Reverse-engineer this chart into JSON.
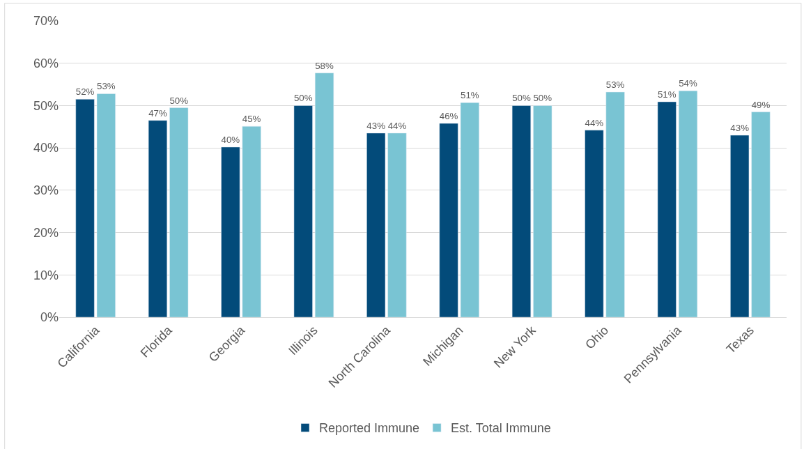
{
  "chart_data": {
    "type": "bar",
    "categories": [
      "California",
      "Florida",
      "Georgia",
      "Illinois",
      "North Carolina",
      "Michigan",
      "New York",
      "Ohio",
      "Pennsylvania",
      "Texas"
    ],
    "series": [
      {
        "name": "Reported Immune",
        "color": "#034b7a",
        "values": [
          51.5,
          46.5,
          40.2,
          50.0,
          43.5,
          45.8,
          50.0,
          44.2,
          50.9,
          43.0
        ],
        "value_labels": [
          "52%",
          "47%",
          "40%",
          "50%",
          "43%",
          "46%",
          "50%",
          "44%",
          "51%",
          "43%"
        ]
      },
      {
        "name": "Est. Total Immune",
        "color": "#79c4d3",
        "values": [
          52.8,
          49.5,
          45.1,
          57.7,
          43.5,
          50.7,
          50.0,
          53.2,
          53.5,
          48.5
        ],
        "value_labels": [
          "53%",
          "50%",
          "45%",
          "58%",
          "44%",
          "51%",
          "50%",
          "53%",
          "54%",
          "49%"
        ]
      }
    ],
    "ylim": [
      0,
      70
    ],
    "yticks": [
      {
        "value": 0,
        "label": "0%"
      },
      {
        "value": 10,
        "label": "10%"
      },
      {
        "value": 20,
        "label": "20%"
      },
      {
        "value": 30,
        "label": "30%"
      },
      {
        "value": 40,
        "label": "40%"
      },
      {
        "value": 50,
        "label": "50%"
      },
      {
        "value": 60,
        "label": "60%"
      },
      {
        "value": 70,
        "label": "70%"
      }
    ],
    "grid": "y",
    "legend": "bottom"
  }
}
